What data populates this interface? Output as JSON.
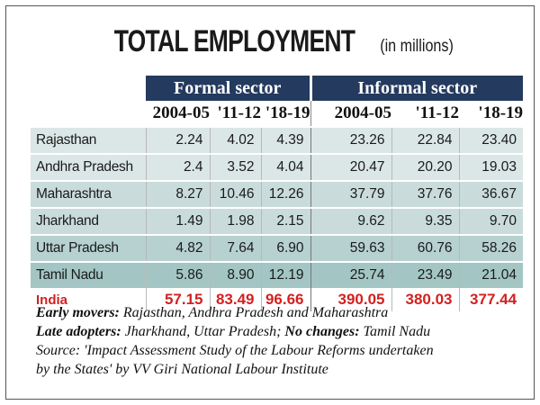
{
  "header": {
    "title": "TOTAL EMPLOYMENT",
    "unit": "(in millions)"
  },
  "chart_data": {
    "type": "table",
    "groups": [
      "Formal sector",
      "Informal sector"
    ],
    "years": [
      "2004-05",
      "'11-12",
      "'18-19",
      "2004-05",
      "'11-12",
      "'18-19"
    ],
    "rows": [
      {
        "state": "Rajasthan",
        "values": [
          "2.24",
          "4.02",
          "4.39",
          "23.26",
          "22.84",
          "23.40"
        ]
      },
      {
        "state": "Andhra Pradesh",
        "values": [
          "2.4",
          "3.52",
          "4.04",
          "20.47",
          "20.20",
          "19.03"
        ]
      },
      {
        "state": "Maharashtra",
        "values": [
          "8.27",
          "10.46",
          "12.26",
          "37.79",
          "37.76",
          "36.67"
        ]
      },
      {
        "state": "Jharkhand",
        "values": [
          "1.49",
          "1.98",
          "2.15",
          "9.62",
          "9.35",
          "9.70"
        ]
      },
      {
        "state": "Uttar Pradesh",
        "values": [
          "4.82",
          "7.64",
          "6.90",
          "59.63",
          "60.76",
          "58.26"
        ]
      },
      {
        "state": "Tamil Nadu",
        "values": [
          "5.86",
          "8.90",
          "12.19",
          "25.74",
          "23.49",
          "21.04"
        ]
      }
    ],
    "total": {
      "state": "India",
      "values": [
        "57.15",
        "83.49",
        "96.66",
        "390.05",
        "380.03",
        "377.44"
      ]
    }
  },
  "notes": {
    "early_label": "Early movers:",
    "early_text": "Rajasthan, Andhra Pradesh and Maharashtra",
    "late_label": "Late adopters:",
    "late_text": "Jharkhand, Uttar Pradesh;",
    "nochange_label": "No changes:",
    "nochange_text": "Tamil Nadu",
    "source_line1": "Source: 'Impact Assessment Study of the Labour Reforms undertaken",
    "source_line2": "by the States' by VV Giri National Labour Institute"
  },
  "colors": {
    "header_band": "#243a5e",
    "total_text": "#d42020"
  }
}
